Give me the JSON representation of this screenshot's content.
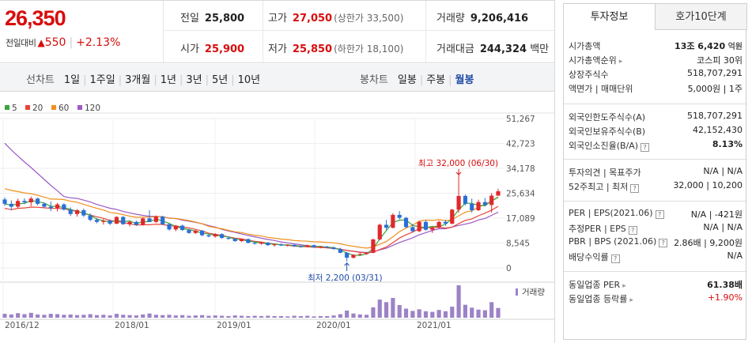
{
  "quote": {
    "price": "26,350",
    "change_label": "전일대비",
    "change_arrow": "▲",
    "change_value": "550",
    "change_percent": "+2.13%",
    "prev_close": {
      "label": "전일",
      "value": "25,800"
    },
    "high": {
      "label": "고가",
      "value": "27,050",
      "sub": "(상한가 33,500)"
    },
    "volume": {
      "label": "거래량",
      "value": "9,206,416"
    },
    "open": {
      "label": "시가",
      "value": "25,900"
    },
    "low": {
      "label": "저가",
      "value": "25,850",
      "sub": "(하한가 18,100)"
    },
    "amount": {
      "label": "거래대금",
      "value": "244,324",
      "unit": "백만"
    }
  },
  "periods": {
    "line_label": "선차트",
    "line_items": [
      "1일",
      "1주일",
      "3개월",
      "1년",
      "3년",
      "5년",
      "10년"
    ],
    "candle_label": "봉차트",
    "candle_items": [
      "일봉",
      "주봉",
      "월봉"
    ],
    "candle_selected": "월봉"
  },
  "chart_data": {
    "type": "candlestick",
    "legend": [
      {
        "name": "5",
        "color": "#3aa53a"
      },
      {
        "name": "20",
        "color": "#e8443a"
      },
      {
        "name": "60",
        "color": "#f0901e"
      },
      {
        "name": "120",
        "color": "#9b59c6"
      }
    ],
    "y_ticks": [
      "51,267",
      "42,723",
      "34,178",
      "25,634",
      "17,089",
      "8,545",
      "0"
    ],
    "ylim": [
      0,
      51267
    ],
    "x_ticks": [
      "2016/12",
      "2018/01",
      "2019/01",
      "2020/01",
      "2021/01"
    ],
    "high_annotation": {
      "label": "최고",
      "value": "32,000",
      "date": "(06/30)"
    },
    "low_annotation": {
      "label": "최저",
      "value": "2,200",
      "date": "(03/31)"
    },
    "volume_label": "거래량",
    "candles": [
      [
        23500,
        24200,
        21300,
        22000
      ],
      [
        22000,
        23200,
        19800,
        21000
      ],
      [
        21000,
        23800,
        20500,
        23000
      ],
      [
        23000,
        23900,
        21900,
        22500
      ],
      [
        22500,
        24500,
        21200,
        23800
      ],
      [
        23800,
        24100,
        21500,
        22000
      ],
      [
        22000,
        22500,
        20500,
        21000
      ],
      [
        21000,
        22800,
        19500,
        20500
      ],
      [
        20500,
        22300,
        19400,
        21800
      ],
      [
        21800,
        22200,
        19700,
        20000
      ],
      [
        20000,
        20800,
        17800,
        18500
      ],
      [
        18500,
        20200,
        17600,
        19800
      ],
      [
        19800,
        20400,
        17500,
        18000
      ],
      [
        18000,
        18700,
        16000,
        16500
      ],
      [
        16500,
        17100,
        15300,
        15800
      ],
      [
        15800,
        16800,
        14900,
        16200
      ],
      [
        16200,
        16700,
        14700,
        15200
      ],
      [
        15200,
        17700,
        15000,
        17500
      ],
      [
        17500,
        17800,
        14800,
        15000
      ],
      [
        15000,
        16300,
        14200,
        15800
      ],
      [
        15800,
        16200,
        14400,
        14800
      ],
      [
        14800,
        17300,
        14500,
        17000
      ],
      [
        17000,
        19800,
        15800,
        15800
      ],
      [
        15800,
        18000,
        15400,
        17600
      ],
      [
        17600,
        17900,
        14700,
        15000
      ],
      [
        15000,
        15300,
        12800,
        13200
      ],
      [
        13200,
        14800,
        12600,
        14500
      ],
      [
        14500,
        14900,
        12700,
        13000
      ],
      [
        13000,
        13400,
        11700,
        12000
      ],
      [
        12000,
        13000,
        11600,
        12800
      ],
      [
        12800,
        13000,
        10900,
        11200
      ],
      [
        11200,
        11500,
        10500,
        10800
      ],
      [
        10800,
        11900,
        10400,
        11600
      ],
      [
        11600,
        11900,
        10000,
        10300
      ],
      [
        10300,
        10800,
        9600,
        10000
      ],
      [
        10000,
        10300,
        9000,
        9200
      ],
      [
        9200,
        10100,
        8900,
        9900
      ],
      [
        9900,
        10100,
        8400,
        8600
      ],
      [
        8600,
        9000,
        8000,
        8300
      ],
      [
        8300,
        8900,
        8000,
        8700
      ],
      [
        8700,
        8900,
        7600,
        7800
      ],
      [
        7800,
        8300,
        7300,
        8100
      ],
      [
        8100,
        8400,
        7500,
        7700
      ],
      [
        7700,
        8100,
        7300,
        7900
      ],
      [
        7900,
        8200,
        7200,
        7400
      ],
      [
        7400,
        7800,
        7000,
        7200
      ],
      [
        7200,
        8000,
        7000,
        7800
      ],
      [
        7800,
        8000,
        6900,
        7100
      ],
      [
        7100,
        7500,
        6700,
        7300
      ],
      [
        7300,
        7600,
        6800,
        7000
      ],
      [
        7000,
        7300,
        6200,
        6500
      ],
      [
        6500,
        6900,
        5000,
        5200
      ],
      [
        5200,
        5500,
        2200,
        3500
      ],
      [
        3500,
        4700,
        3200,
        4500
      ],
      [
        4500,
        5100,
        4200,
        4800
      ],
      [
        4800,
        5400,
        4500,
        5200
      ],
      [
        5200,
        10000,
        5000,
        9800
      ],
      [
        9800,
        15200,
        9500,
        14800
      ],
      [
        14800,
        16500,
        13000,
        13800
      ],
      [
        13800,
        18800,
        13500,
        18200
      ],
      [
        18200,
        19500,
        16700,
        17200
      ],
      [
        17200,
        17500,
        13600,
        14000
      ],
      [
        14000,
        15100,
        12100,
        12600
      ],
      [
        12600,
        16200,
        12300,
        15800
      ],
      [
        15800,
        16300,
        12800,
        13100
      ],
      [
        13100,
        14300,
        12000,
        13800
      ],
      [
        13800,
        16200,
        13500,
        15800
      ],
      [
        15800,
        16500,
        14500,
        15200
      ],
      [
        15200,
        20300,
        15000,
        20000
      ],
      [
        20000,
        32000,
        19000,
        24700
      ],
      [
        24700,
        25200,
        21400,
        22000
      ],
      [
        22000,
        23800,
        19000,
        19800
      ],
      [
        19800,
        23400,
        19500,
        22600
      ],
      [
        22600,
        24000,
        21100,
        21600
      ],
      [
        21600,
        25700,
        19000,
        24800
      ],
      [
        24800,
        27200,
        25000,
        26300
      ]
    ],
    "volumes": [
      1.2,
      1.0,
      1.4,
      1.1,
      1.5,
      1.0,
      0.9,
      1.2,
      1.1,
      0.9,
      1.0,
      0.8,
      0.9,
      1.1,
      0.8,
      0.9,
      0.7,
      1.2,
      0.9,
      0.8,
      0.7,
      1.0,
      1.3,
      0.9,
      0.8,
      0.9,
      0.7,
      0.8,
      0.6,
      0.7,
      0.8,
      0.6,
      0.7,
      0.6,
      0.5,
      0.7,
      0.6,
      0.5,
      0.6,
      0.5,
      0.6,
      0.5,
      0.5,
      0.4,
      0.6,
      0.5,
      0.6,
      0.4,
      0.5,
      0.5,
      0.7,
      1.1,
      2.2,
      1.3,
      1.0,
      0.9,
      3.2,
      5.6,
      4.8,
      6.1,
      3.9,
      2.8,
      2.1,
      2.6,
      2.0,
      1.8,
      2.4,
      2.0,
      3.4,
      10.0,
      4.0,
      3.1,
      2.5,
      2.3,
      4.8,
      3.0
    ]
  },
  "info": {
    "tab_active": "투자정보",
    "tab_other": "호가10단계",
    "rows1": [
      {
        "k": "시가총액",
        "v": "13조 6,420",
        "unit": "억원"
      },
      {
        "k": "시가총액순위",
        "v": "코스피 30위"
      },
      {
        "k": "상장주식수",
        "v": "518,707,291"
      },
      {
        "k": "액면가 | 매매단위",
        "v": "5,000원 | 1주"
      }
    ],
    "rows2": [
      {
        "k": "외국인한도주식수(A)",
        "v": "518,707,291"
      },
      {
        "k": "외국인보유주식수(B)",
        "v": "42,152,430"
      },
      {
        "k": "외국인소진율(B/A)",
        "v": "8.13%"
      }
    ],
    "rows3": [
      {
        "k": "투자의견 | 목표주가",
        "v": "N/A | N/A"
      },
      {
        "k": "52주최고 | 최저",
        "v": "32,000 | 10,200"
      }
    ],
    "rows4": [
      {
        "k": "PER | EPS(2021.06)",
        "v": "N/A | -421원"
      },
      {
        "k": "추정PER | EPS",
        "v": "N/A | N/A"
      },
      {
        "k": "PBR | BPS (2021.06)",
        "v": "2.86배 | 9,200원"
      },
      {
        "k": "배당수익률",
        "v": "N/A"
      }
    ],
    "rows5": [
      {
        "k": "동일업종 PER",
        "v": "61.38배"
      },
      {
        "k": "동일업종 등락률",
        "v": "+1.90%"
      }
    ]
  }
}
